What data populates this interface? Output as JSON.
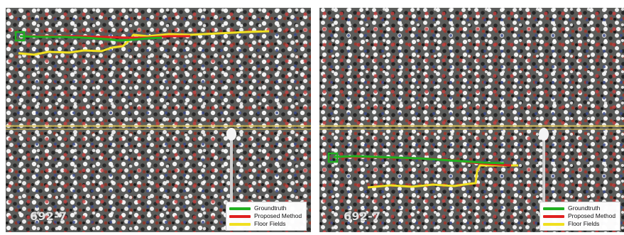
{
  "panels": [
    {
      "frame_label": "692-7",
      "legend": [
        {
          "label": "Groundtruth",
          "color": "#20b020"
        },
        {
          "label": "Proposed Method",
          "color": "#e02020"
        },
        {
          "label": "Floor Fields",
          "color": "#f0e020"
        }
      ]
    },
    {
      "frame_label": "692-7",
      "legend": [
        {
          "label": "Groundtruth",
          "color": "#20b020"
        },
        {
          "label": "Proposed Method",
          "color": "#e02020"
        },
        {
          "label": "Floor Fields",
          "color": "#f0e020"
        }
      ]
    }
  ],
  "colors": {
    "groundtruth": "#20b020",
    "proposed": "#e02020",
    "floor_fields": "#f0e020",
    "road": "#5a5a5a"
  }
}
